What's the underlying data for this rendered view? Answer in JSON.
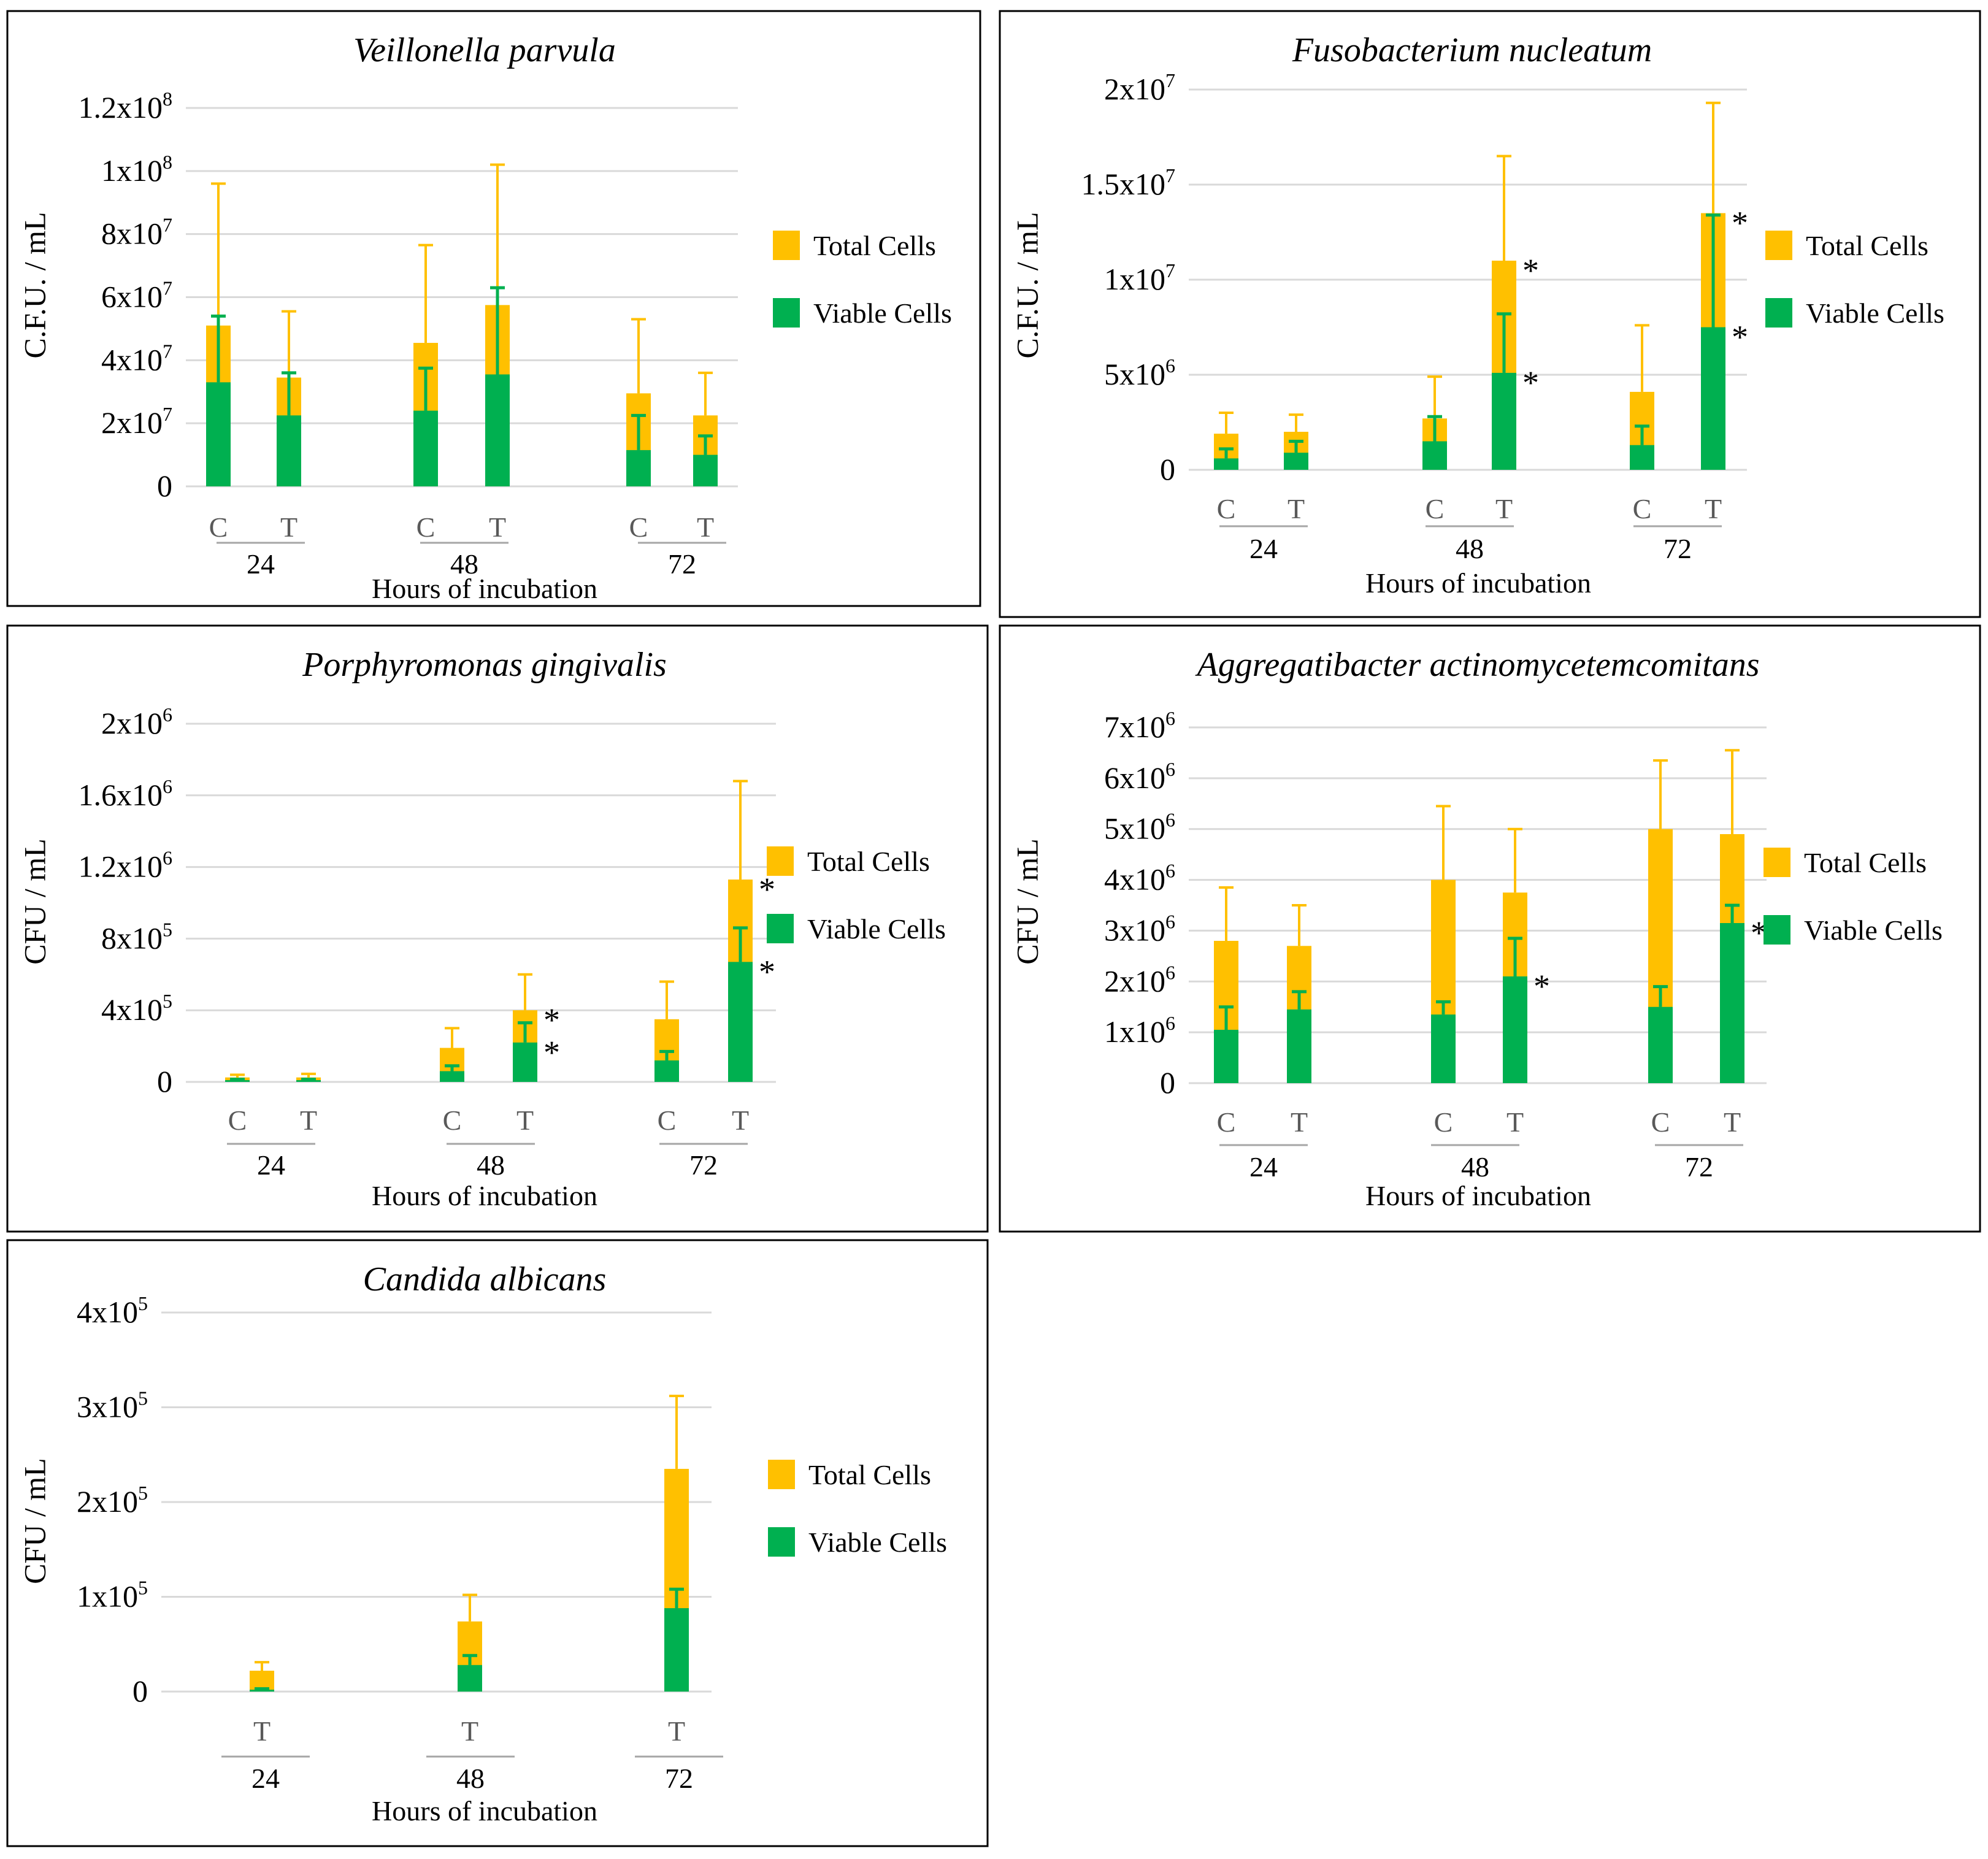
{
  "colors": {
    "total": "#FFC000",
    "viable": "#00B050",
    "grid": "#D9D9D9",
    "frame": "#000000"
  },
  "legend": {
    "total": "Total Cells",
    "viable": "Viable Cells"
  },
  "chart_data": [
    {
      "type": "bar",
      "stacking": "overlaid",
      "title": "Veillonella parvula",
      "ylabel": "C.F.U. / mL",
      "xlabel": "Hours of incubation",
      "ylim": [
        0,
        120000000
      ],
      "yticks": [
        {
          "value": 0,
          "base": "0",
          "exp": ""
        },
        {
          "value": 20000000,
          "base": "2x10",
          "exp": "7"
        },
        {
          "value": 40000000,
          "base": "4x10",
          "exp": "7"
        },
        {
          "value": 60000000,
          "base": "6x10",
          "exp": "7"
        },
        {
          "value": 80000000,
          "base": "8x10",
          "exp": "7"
        },
        {
          "value": 100000000,
          "base": "1x10",
          "exp": "8"
        },
        {
          "value": 120000000,
          "base": "1.2x10",
          "exp": "8"
        }
      ],
      "groups": [
        "24",
        "48",
        "72"
      ],
      "bars": [
        {
          "cat": "C",
          "group": "24",
          "total": 51000000,
          "total_err": 96000000,
          "viable": 33000000,
          "viable_err": 54000000,
          "star_total": false,
          "star_viable": false
        },
        {
          "cat": "T",
          "group": "24",
          "total": 34500000,
          "total_err": 55500000,
          "viable": 22500000,
          "viable_err": 36000000,
          "star_total": false,
          "star_viable": false
        },
        {
          "cat": "C",
          "group": "48",
          "total": 45500000,
          "total_err": 76500000,
          "viable": 24000000,
          "viable_err": 37500000,
          "star_total": false,
          "star_viable": false
        },
        {
          "cat": "T",
          "group": "48",
          "total": 57500000,
          "total_err": 102000000,
          "viable": 35500000,
          "viable_err": 63000000,
          "star_total": false,
          "star_viable": false
        },
        {
          "cat": "C",
          "group": "72",
          "total": 29500000,
          "total_err": 53000000,
          "viable": 11500000,
          "viable_err": 22500000,
          "star_total": false,
          "star_viable": false
        },
        {
          "cat": "T",
          "group": "72",
          "total": 22500000,
          "total_err": 36000000,
          "viable": 10000000,
          "viable_err": 16000000,
          "star_total": false,
          "star_viable": false
        }
      ]
    },
    {
      "type": "bar",
      "stacking": "overlaid",
      "title": "Fusobacterium nucleatum",
      "ylabel": "C.F.U. / mL",
      "xlabel": "Hours of incubation",
      "ylim": [
        0,
        20000000
      ],
      "yticks": [
        {
          "value": 0,
          "base": "0",
          "exp": ""
        },
        {
          "value": 5000000,
          "base": "5x10",
          "exp": "6"
        },
        {
          "value": 10000000,
          "base": "1x10",
          "exp": "7"
        },
        {
          "value": 15000000,
          "base": "1.5x10",
          "exp": "7"
        },
        {
          "value": 20000000,
          "base": "2x10",
          "exp": "7"
        }
      ],
      "groups": [
        "24",
        "48",
        "72"
      ],
      "bars": [
        {
          "cat": "C",
          "group": "24",
          "total": 1900000,
          "total_err": 3000000,
          "viable": 600000,
          "viable_err": 1100000,
          "star_total": false,
          "star_viable": false
        },
        {
          "cat": "T",
          "group": "24",
          "total": 2000000,
          "total_err": 2900000,
          "viable": 900000,
          "viable_err": 1500000,
          "star_total": false,
          "star_viable": false
        },
        {
          "cat": "C",
          "group": "48",
          "total": 2700000,
          "total_err": 4900000,
          "viable": 1500000,
          "viable_err": 2800000,
          "star_total": false,
          "star_viable": false
        },
        {
          "cat": "T",
          "group": "48",
          "total": 11000000,
          "total_err": 16500000,
          "viable": 5100000,
          "viable_err": 8200000,
          "star_total": true,
          "star_viable": true
        },
        {
          "cat": "C",
          "group": "72",
          "total": 4100000,
          "total_err": 7600000,
          "viable": 1300000,
          "viable_err": 2300000,
          "star_total": false,
          "star_viable": false
        },
        {
          "cat": "T",
          "group": "72",
          "total": 13500000,
          "total_err": 19300000,
          "viable": 7500000,
          "viable_err": 13400000,
          "star_total": true,
          "star_viable": true
        }
      ]
    },
    {
      "type": "bar",
      "stacking": "overlaid",
      "title": "Porphyromonas gingivalis",
      "ylabel": "CFU / mL",
      "xlabel": "Hours of incubation",
      "ylim": [
        0,
        2000000
      ],
      "yticks": [
        {
          "value": 0,
          "base": "0",
          "exp": ""
        },
        {
          "value": 400000,
          "base": "4x10",
          "exp": "5"
        },
        {
          "value": 800000,
          "base": "8x10",
          "exp": "5"
        },
        {
          "value": 1200000,
          "base": "1.2x10",
          "exp": "6"
        },
        {
          "value": 1600000,
          "base": "1.6x10",
          "exp": "6"
        },
        {
          "value": 2000000,
          "base": "2x10",
          "exp": "6"
        }
      ],
      "groups": [
        "24",
        "48",
        "72"
      ],
      "bars": [
        {
          "cat": "C",
          "group": "24",
          "total": 25000,
          "total_err": 40000,
          "viable": 10000,
          "viable_err": 15000,
          "star_total": false,
          "star_viable": false
        },
        {
          "cat": "T",
          "group": "24",
          "total": 25000,
          "total_err": 45000,
          "viable": 10000,
          "viable_err": 15000,
          "star_total": false,
          "star_viable": false
        },
        {
          "cat": "C",
          "group": "48",
          "total": 190000,
          "total_err": 300000,
          "viable": 60000,
          "viable_err": 90000,
          "star_total": false,
          "star_viable": false
        },
        {
          "cat": "T",
          "group": "48",
          "total": 400000,
          "total_err": 600000,
          "viable": 220000,
          "viable_err": 330000,
          "star_total": true,
          "star_viable": true
        },
        {
          "cat": "C",
          "group": "72",
          "total": 350000,
          "total_err": 560000,
          "viable": 120000,
          "viable_err": 170000,
          "star_total": false,
          "star_viable": false
        },
        {
          "cat": "T",
          "group": "72",
          "total": 1130000,
          "total_err": 1680000,
          "viable": 670000,
          "viable_err": 860000,
          "star_total": true,
          "star_viable": true
        }
      ]
    },
    {
      "type": "bar",
      "stacking": "overlaid",
      "title": "Aggregatibacter actinomycetemcomitans",
      "ylabel": "CFU / mL",
      "xlabel": "Hours of incubation",
      "ylim": [
        0,
        7000000
      ],
      "yticks": [
        {
          "value": 0,
          "base": "0",
          "exp": ""
        },
        {
          "value": 1000000,
          "base": "1x10",
          "exp": "6"
        },
        {
          "value": 2000000,
          "base": "2x10",
          "exp": "6"
        },
        {
          "value": 3000000,
          "base": "3x10",
          "exp": "6"
        },
        {
          "value": 4000000,
          "base": "4x10",
          "exp": "6"
        },
        {
          "value": 5000000,
          "base": "5x10",
          "exp": "6"
        },
        {
          "value": 6000000,
          "base": "6x10",
          "exp": "6"
        },
        {
          "value": 7000000,
          "base": "7x10",
          "exp": "6"
        }
      ],
      "groups": [
        "24",
        "48",
        "72"
      ],
      "bars": [
        {
          "cat": "C",
          "group": "24",
          "total": 2800000,
          "total_err": 3850000,
          "viable": 1050000,
          "viable_err": 1500000,
          "star_total": false,
          "star_viable": false
        },
        {
          "cat": "T",
          "group": "24",
          "total": 2700000,
          "total_err": 3500000,
          "viable": 1450000,
          "viable_err": 1800000,
          "star_total": false,
          "star_viable": false
        },
        {
          "cat": "C",
          "group": "48",
          "total": 4000000,
          "total_err": 5450000,
          "viable": 1350000,
          "viable_err": 1600000,
          "star_total": false,
          "star_viable": false
        },
        {
          "cat": "T",
          "group": "48",
          "total": 3750000,
          "total_err": 5000000,
          "viable": 2100000,
          "viable_err": 2850000,
          "star_total": false,
          "star_viable": true
        },
        {
          "cat": "C",
          "group": "72",
          "total": 5000000,
          "total_err": 6350000,
          "viable": 1500000,
          "viable_err": 1900000,
          "star_total": false,
          "star_viable": false
        },
        {
          "cat": "T",
          "group": "72",
          "total": 4900000,
          "total_err": 6550000,
          "viable": 3150000,
          "viable_err": 3500000,
          "star_total": false,
          "star_viable": true
        }
      ]
    },
    {
      "type": "bar",
      "stacking": "overlaid",
      "title": "Candida albicans",
      "ylabel": "CFU / mL",
      "xlabel": "Hours of incubation",
      "ylim": [
        0,
        400000
      ],
      "yticks": [
        {
          "value": 0,
          "base": "0",
          "exp": ""
        },
        {
          "value": 100000,
          "base": "1x10",
          "exp": "5"
        },
        {
          "value": 200000,
          "base": "2x10",
          "exp": "5"
        },
        {
          "value": 300000,
          "base": "3x10",
          "exp": "5"
        },
        {
          "value": 400000,
          "base": "4x10",
          "exp": "5"
        }
      ],
      "groups": [
        "24",
        "48",
        "72"
      ],
      "bars": [
        {
          "cat": "T",
          "group": "24",
          "total": 22000,
          "total_err": 31000,
          "viable": 2000,
          "viable_err": 3000,
          "star_total": false,
          "star_viable": false
        },
        {
          "cat": "T",
          "group": "48",
          "total": 74000,
          "total_err": 102000,
          "viable": 28000,
          "viable_err": 38000,
          "star_total": false,
          "star_viable": false
        },
        {
          "cat": "T",
          "group": "72",
          "total": 235000,
          "total_err": 312000,
          "viable": 88000,
          "viable_err": 108000,
          "star_total": false,
          "star_viable": false
        }
      ]
    }
  ]
}
